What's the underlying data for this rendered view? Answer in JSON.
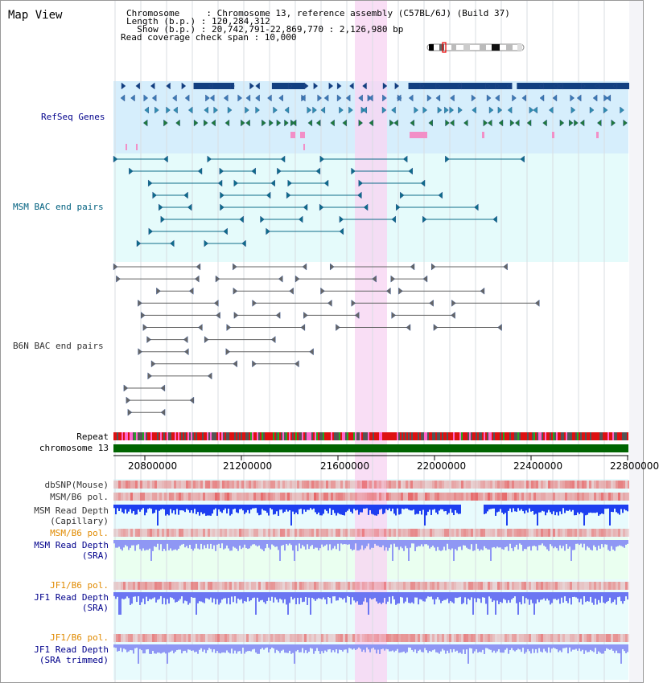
{
  "page": {
    "title": "Map View"
  },
  "info": {
    "line1": "Chromosome     : Chromosome 13, reference assembly (C57BL/6J) (Build 37)",
    "line2": "Length (b.p.) : 120,284,312",
    "line3": "  Show (b.p.) : 20,742,791-22,869,770 : 2,126,980 bp",
    "line4": "Read coverage check span : 10,000"
  },
  "tracks": {
    "refseq": "RefSeq Genes",
    "msm_bac": "MSM BAC end pairs",
    "b6n_bac": "B6N BAC end pairs",
    "repeat": "Repeat",
    "chromosome": "chromosome 13",
    "dbsnp": "dbSNP(Mouse)",
    "msm_b6_pol": "MSM/B6 pol.",
    "msm_depth_cap_1": "MSM Read Depth",
    "msm_depth_cap_2": "(Capillary)",
    "msm_b6_pol2": "MSM/B6 pol.",
    "msm_depth_sra_1": "MSM Read Depth",
    "msm_depth_sra_2": "(SRA)",
    "jf1_b6_pol": "JF1/B6 pol.",
    "jf1_depth_sra_1": "JF1 Read Depth",
    "jf1_depth_sra_2": "(SRA)",
    "jf1_b6_pol2": "JF1/B6 pol.",
    "jf1_depth_trim_1": "JF1 Read Depth",
    "jf1_depth_trim_2": "(SRA trimmed)"
  },
  "axis": {
    "ticks": [
      "20800000",
      "21200000",
      "21600000",
      "22000000",
      "22400000",
      "22800000"
    ]
  },
  "colors": {
    "highlight": "#f7d6f3",
    "refseq_bg": "#d6eefc",
    "msm_bg": "#e5fbfb",
    "sra_bg": "#eafff0",
    "label_blue": "#00008b",
    "label_teal": "#00607f",
    "label_orange": "#e08a00",
    "chromosome_bar": "#006400"
  }
}
